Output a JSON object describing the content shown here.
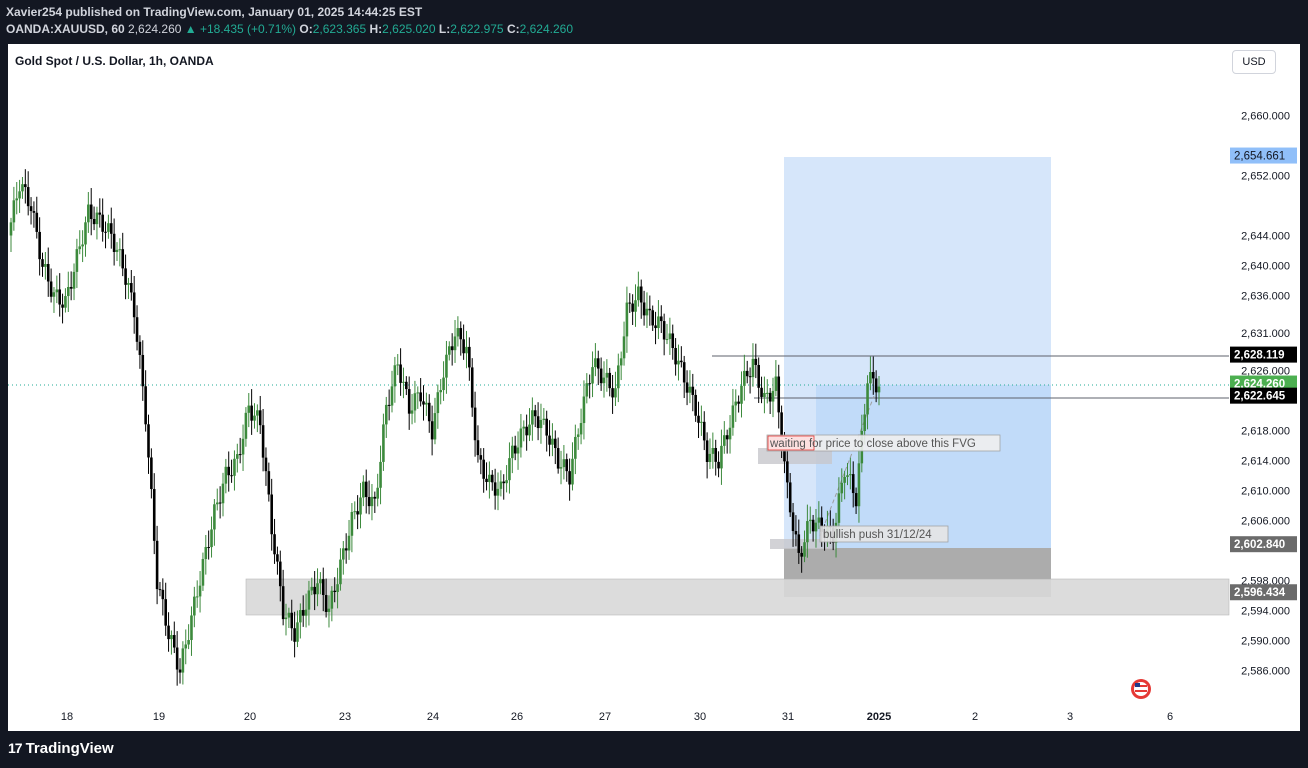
{
  "header": {
    "published": "Xavier254 published on TradingView.com, January 01, 2025 14:44:25 EST",
    "symbol": "OANDA:XAUUSD, 60",
    "price": "2,624.260",
    "change": "▲ +18.435 (+0.71%)",
    "open_label": "O:",
    "open": "2,623.365",
    "high_label": "H:",
    "high": "2,625.020",
    "low_label": "L:",
    "low": "2,622.975",
    "close_label": "C:",
    "close": "2,624.260"
  },
  "chart_title": "Gold Spot / U.S. Dollar, 1h, OANDA",
  "currency_button": "USD",
  "footer": {
    "logo_mark": "17",
    "logo_text": "TradingView"
  },
  "colors": {
    "up": "#22ab94",
    "candle_up": "#26a69a",
    "candle_up_body": "#3c8a3c",
    "down": "#000000",
    "target_zone": "#cfe2f9",
    "highlight": "#b3d4f8",
    "stop_zone": "#9e9e9e",
    "support_zone": "#d9d9d9",
    "target_label": "#90bff9",
    "current_label": "#4caf50"
  },
  "chart_data": {
    "type": "candlestick",
    "title": "Gold Spot / U.S. Dollar, 1h, OANDA",
    "ylim": [
      2583,
      2666
    ],
    "y_ticks": [
      "2,660.000",
      "2,652.000",
      "2,644.000",
      "2,640.000",
      "2,636.000",
      "2,631.000",
      "2,626.000",
      "2,618.000",
      "2,614.000",
      "2,610.000",
      "2,606.000",
      "2,598.000",
      "2,594.000",
      "2,590.000",
      "2,586.000"
    ],
    "x_ticks": [
      "18",
      "19",
      "20",
      "23",
      "24",
      "26",
      "27",
      "30",
      "31",
      "2025",
      "2",
      "3",
      "6"
    ],
    "price_labels": [
      {
        "text": "2,654.661",
        "kind": "target"
      },
      {
        "text": "2,628.119",
        "kind": "level"
      },
      {
        "text": "2,624.260",
        "kind": "current"
      },
      {
        "text": "2,622.645",
        "kind": "level"
      },
      {
        "text": "2,602.840",
        "kind": "stop"
      },
      {
        "text": "2,596.434",
        "kind": "stop2"
      }
    ],
    "annotations": [
      {
        "text": "waiting for price to close above this FVG"
      },
      {
        "text": "bullish push 31/12/24"
      }
    ],
    "path_close": [
      2644,
      2651,
      2648,
      2640,
      2636,
      2635,
      2641,
      2647,
      2646,
      2644,
      2640,
      2634,
      2620,
      2598,
      2591,
      2586,
      2593,
      2600,
      2607,
      2612,
      2614,
      2621,
      2619,
      2605,
      2594,
      2591,
      2595,
      2598,
      2594,
      2600,
      2606,
      2610,
      2608,
      2621,
      2627,
      2621,
      2623,
      2618,
      2626,
      2631,
      2629,
      2614,
      2611,
      2610,
      2615,
      2618,
      2620,
      2618,
      2614,
      2612,
      2620,
      2627,
      2625,
      2623,
      2634,
      2636,
      2633,
      2632,
      2629,
      2625,
      2621,
      2615,
      2614,
      2619,
      2624,
      2627,
      2622,
      2624,
      2610,
      2601,
      2606,
      2605,
      2604,
      2613,
      2609,
      2625,
      2624
    ]
  }
}
